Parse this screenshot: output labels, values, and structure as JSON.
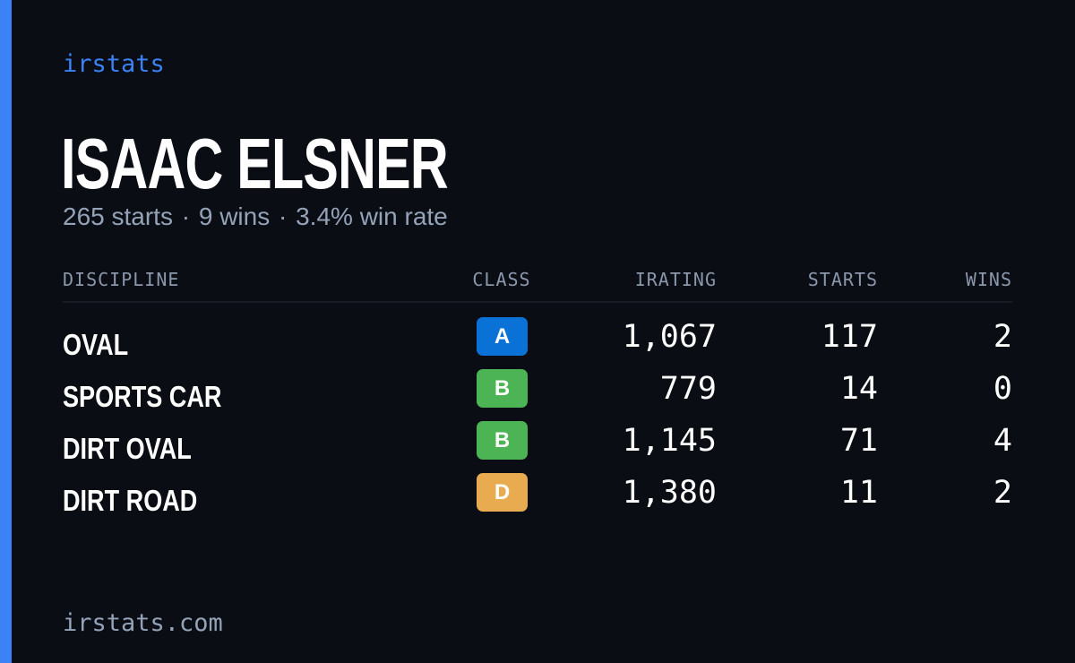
{
  "brand": "irstats",
  "driver": {
    "name": "ISAAC ELSNER",
    "summary": {
      "starts": "265 starts",
      "wins": "9 wins",
      "win_rate": "3.4% win rate",
      "separator": "·"
    }
  },
  "table": {
    "headers": {
      "discipline": "DISCIPLINE",
      "class": "CLASS",
      "irating": "IRATING",
      "starts": "STARTS",
      "wins": "WINS"
    },
    "rows": [
      {
        "discipline": "OVAL",
        "class": "A",
        "class_color": "#0a72d6",
        "irating": "1,067",
        "starts": "117",
        "wins": "2"
      },
      {
        "discipline": "SPORTS CAR",
        "class": "B",
        "class_color": "#4cb454",
        "irating": "779",
        "starts": "14",
        "wins": "0"
      },
      {
        "discipline": "DIRT OVAL",
        "class": "B",
        "class_color": "#4cb454",
        "irating": "1,145",
        "starts": "71",
        "wins": "4"
      },
      {
        "discipline": "DIRT ROAD",
        "class": "D",
        "class_color": "#e8ab4f",
        "irating": "1,380",
        "starts": "11",
        "wins": "2"
      }
    ]
  },
  "footer": "irstats.com",
  "colors": {
    "background": "#0a0d14",
    "accent": "#3b82f6",
    "muted_text": "#94a3b8",
    "text": "#ffffff"
  }
}
